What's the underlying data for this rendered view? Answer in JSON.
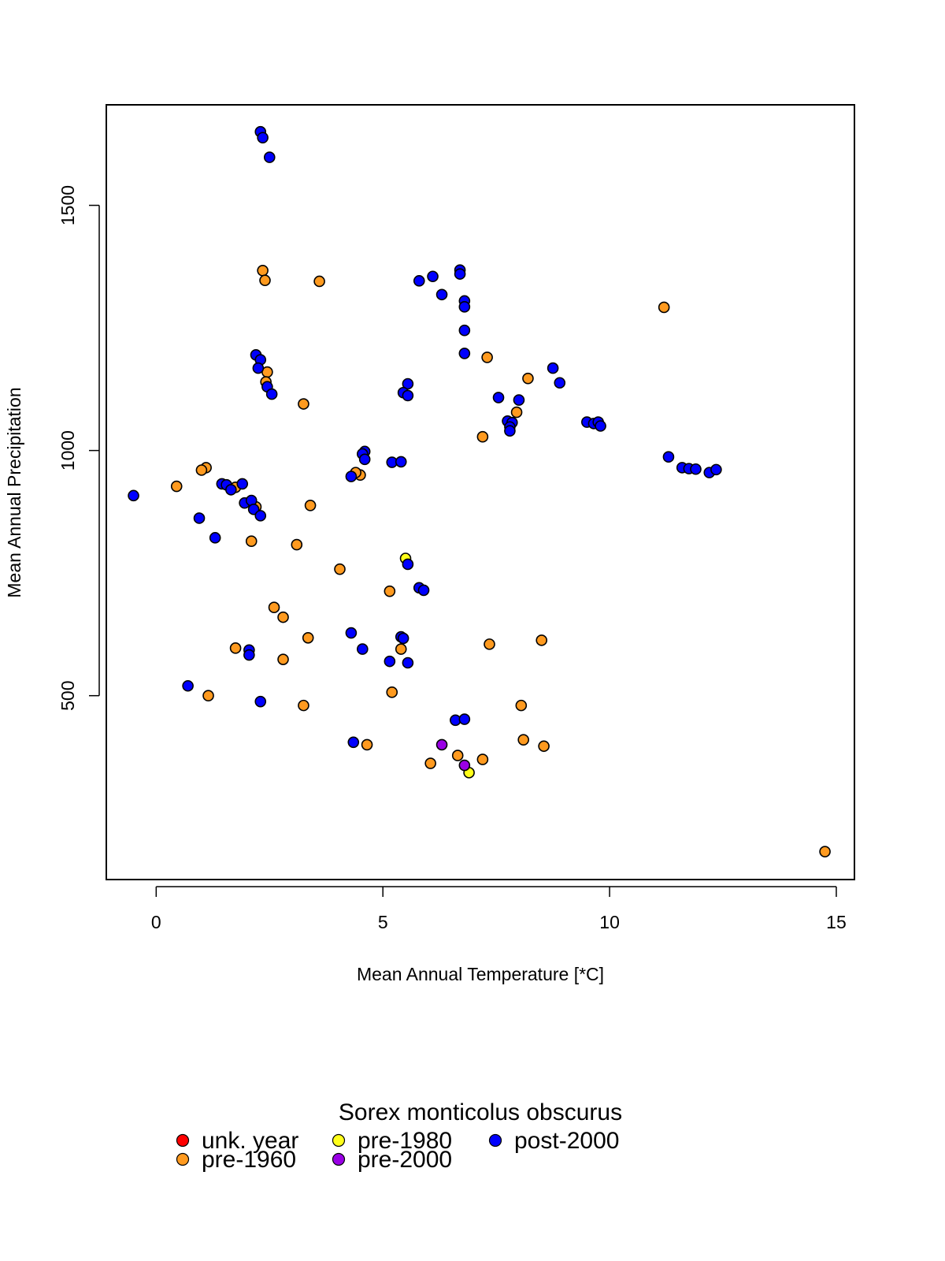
{
  "chart_data": {
    "type": "scatter",
    "title": "",
    "xlabel": "Mean Annual Temperature [*C]",
    "ylabel": "Mean Annual Precipitation",
    "xlim": [
      -1.1,
      15.4
    ],
    "ylim": [
      125,
      1705
    ],
    "x_ticks": [
      0,
      5,
      10,
      15
    ],
    "x_tick_labels": [
      "0",
      "5",
      "10",
      "15"
    ],
    "y_ticks": [
      500,
      1000,
      1500
    ],
    "y_tick_labels": [
      "500",
      "1000",
      "1500"
    ],
    "grid": false,
    "legend": {
      "title": "Sorex monticolus obscurus",
      "placement": "bottom-center",
      "entries": [
        {
          "label": "unk. year",
          "color": "#ff0000"
        },
        {
          "label": "pre-1960",
          "color": "#ff9a1f"
        },
        {
          "label": "pre-1980",
          "color": "#ffff19"
        },
        {
          "label": "pre-2000",
          "color": "#9a00e6"
        },
        {
          "label": "post-2000",
          "color": "#0000ff"
        }
      ]
    },
    "series": [
      {
        "name": "pre-1960",
        "color": "#ff9a1f",
        "points": [
          [
            2.35,
            1367
          ],
          [
            2.4,
            1347
          ],
          [
            3.6,
            1345
          ],
          [
            11.2,
            1292
          ],
          [
            7.3,
            1190
          ],
          [
            2.45,
            1160
          ],
          [
            2.42,
            1140
          ],
          [
            8.2,
            1147
          ],
          [
            3.25,
            1095
          ],
          [
            7.95,
            1078
          ],
          [
            7.2,
            1028
          ],
          [
            1.1,
            965
          ],
          [
            1.0,
            960
          ],
          [
            4.5,
            950
          ],
          [
            4.4,
            955
          ],
          [
            0.45,
            927
          ],
          [
            1.75,
            925
          ],
          [
            2.2,
            885
          ],
          [
            3.4,
            888
          ],
          [
            2.1,
            815
          ],
          [
            3.1,
            808
          ],
          [
            4.05,
            758
          ],
          [
            5.15,
            713
          ],
          [
            2.6,
            680
          ],
          [
            2.8,
            660
          ],
          [
            3.35,
            618
          ],
          [
            1.75,
            597
          ],
          [
            2.8,
            574
          ],
          [
            7.35,
            605
          ],
          [
            8.5,
            613
          ],
          [
            5.4,
            595
          ],
          [
            5.2,
            507
          ],
          [
            1.15,
            500
          ],
          [
            3.25,
            480
          ],
          [
            8.05,
            480
          ],
          [
            4.65,
            400
          ],
          [
            8.1,
            410
          ],
          [
            8.55,
            397
          ],
          [
            6.65,
            378
          ],
          [
            7.2,
            370
          ],
          [
            6.05,
            362
          ],
          [
            14.75,
            182
          ]
        ]
      },
      {
        "name": "pre-1980",
        "color": "#ffff19",
        "points": [
          [
            5.5,
            780
          ],
          [
            6.9,
            343
          ]
        ]
      },
      {
        "name": "pre-2000",
        "color": "#9a00e6",
        "points": [
          [
            6.3,
            400
          ],
          [
            6.8,
            358
          ]
        ]
      },
      {
        "name": "post-2000",
        "color": "#0000ff",
        "points": [
          [
            2.3,
            1650
          ],
          [
            2.35,
            1638
          ],
          [
            2.5,
            1598
          ],
          [
            6.7,
            1368
          ],
          [
            6.7,
            1360
          ],
          [
            6.1,
            1355
          ],
          [
            5.8,
            1346
          ],
          [
            6.3,
            1318
          ],
          [
            6.8,
            1305
          ],
          [
            6.8,
            1293
          ],
          [
            6.8,
            1245
          ],
          [
            6.8,
            1198
          ],
          [
            2.2,
            1195
          ],
          [
            2.3,
            1185
          ],
          [
            2.25,
            1168
          ],
          [
            2.45,
            1130
          ],
          [
            2.55,
            1115
          ],
          [
            8.75,
            1168
          ],
          [
            8.9,
            1138
          ],
          [
            5.55,
            1136
          ],
          [
            5.45,
            1118
          ],
          [
            5.55,
            1112
          ],
          [
            7.55,
            1108
          ],
          [
            8.0,
            1103
          ],
          [
            7.75,
            1060
          ],
          [
            7.85,
            1057
          ],
          [
            7.8,
            1048
          ],
          [
            7.8,
            1040
          ],
          [
            9.5,
            1058
          ],
          [
            9.65,
            1055
          ],
          [
            9.75,
            1058
          ],
          [
            9.8,
            1050
          ],
          [
            4.6,
            998
          ],
          [
            4.55,
            993
          ],
          [
            4.6,
            982
          ],
          [
            5.2,
            976
          ],
          [
            5.4,
            977
          ],
          [
            4.3,
            947
          ],
          [
            11.3,
            987
          ],
          [
            11.6,
            965
          ],
          [
            11.75,
            963
          ],
          [
            11.9,
            962
          ],
          [
            12.2,
            955
          ],
          [
            12.35,
            961
          ],
          [
            -0.5,
            908
          ],
          [
            1.45,
            932
          ],
          [
            1.55,
            930
          ],
          [
            1.65,
            920
          ],
          [
            1.9,
            932
          ],
          [
            1.95,
            893
          ],
          [
            2.1,
            898
          ],
          [
            2.15,
            880
          ],
          [
            2.3,
            867
          ],
          [
            0.95,
            862
          ],
          [
            1.3,
            822
          ],
          [
            5.55,
            768
          ],
          [
            5.8,
            720
          ],
          [
            5.9,
            715
          ],
          [
            4.3,
            628
          ],
          [
            5.4,
            620
          ],
          [
            5.45,
            617
          ],
          [
            4.55,
            595
          ],
          [
            5.15,
            570
          ],
          [
            5.55,
            567
          ],
          [
            2.05,
            593
          ],
          [
            2.05,
            583
          ],
          [
            0.7,
            520
          ],
          [
            2.3,
            488
          ],
          [
            6.6,
            450
          ],
          [
            6.8,
            452
          ],
          [
            4.35,
            405
          ]
        ]
      }
    ]
  }
}
